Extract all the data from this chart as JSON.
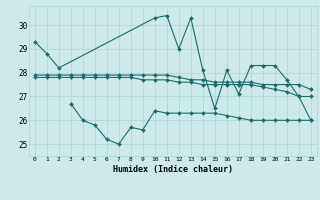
{
  "xlabel": "Humidex (Indice chaleur)",
  "background_color": "#cceaea",
  "grid_color": "#aad4d4",
  "line_color": "#1e6b6b",
  "xlim": [
    -0.5,
    23.5
  ],
  "ylim": [
    24.5,
    30.8
  ],
  "yticks": [
    25,
    26,
    27,
    28,
    29,
    30
  ],
  "xticks": [
    0,
    1,
    2,
    3,
    4,
    5,
    6,
    7,
    8,
    9,
    10,
    11,
    12,
    13,
    14,
    15,
    16,
    17,
    18,
    19,
    20,
    21,
    22,
    23
  ],
  "series": [
    {
      "x": [
        0,
        1,
        2,
        10,
        11,
        12,
        13,
        14,
        15,
        16,
        17,
        18,
        19,
        20,
        21,
        22,
        23
      ],
      "y": [
        29.3,
        28.8,
        28.2,
        30.3,
        30.4,
        29.0,
        30.3,
        28.1,
        26.5,
        28.1,
        27.1,
        28.3,
        28.3,
        28.3,
        27.7,
        27.0,
        26.0
      ]
    },
    {
      "x": [
        0,
        1,
        2,
        3,
        4,
        5,
        6,
        7,
        8,
        9,
        10,
        11,
        12,
        13,
        14,
        15,
        16,
        17,
        18,
        19,
        20,
        21,
        22,
        23
      ],
      "y": [
        27.9,
        27.9,
        27.9,
        27.9,
        27.9,
        27.9,
        27.9,
        27.9,
        27.9,
        27.9,
        27.9,
        27.9,
        27.8,
        27.7,
        27.7,
        27.6,
        27.6,
        27.6,
        27.6,
        27.5,
        27.5,
        27.5,
        27.5,
        27.3
      ]
    },
    {
      "x": [
        0,
        1,
        2,
        3,
        4,
        5,
        6,
        7,
        8,
        9,
        10,
        11,
        12,
        13,
        14,
        15,
        16,
        17,
        18,
        19,
        20,
        21,
        22,
        23
      ],
      "y": [
        27.8,
        27.8,
        27.8,
        27.8,
        27.8,
        27.8,
        27.8,
        27.8,
        27.8,
        27.7,
        27.7,
        27.7,
        27.6,
        27.6,
        27.5,
        27.5,
        27.5,
        27.5,
        27.5,
        27.4,
        27.3,
        27.2,
        27.0,
        27.0
      ]
    },
    {
      "x": [
        3,
        4,
        5,
        6,
        7,
        8,
        9,
        10,
        11,
        12,
        13,
        14,
        15,
        16,
        17,
        18,
        19,
        20,
        21,
        22,
        23
      ],
      "y": [
        26.7,
        26.0,
        25.8,
        25.2,
        25.0,
        25.7,
        25.6,
        26.4,
        26.3,
        26.3,
        26.3,
        26.3,
        26.3,
        26.2,
        26.1,
        26.0,
        26.0,
        26.0,
        26.0,
        26.0,
        26.0
      ]
    }
  ]
}
